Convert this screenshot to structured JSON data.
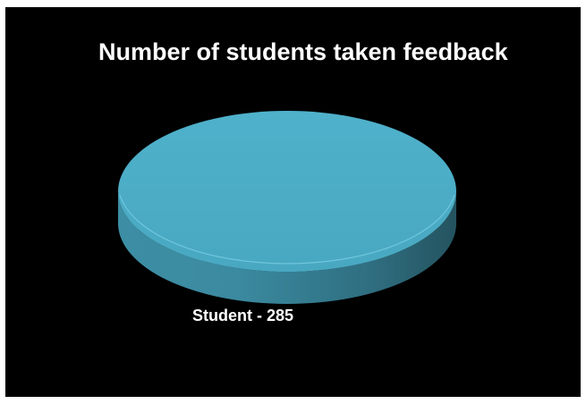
{
  "chart_data": {
    "type": "pie",
    "title": "Number of students taken feedback",
    "slices": [
      {
        "label": "Student",
        "value": 285,
        "color": "#4BACC6"
      }
    ],
    "data_labels": [
      "Student - 285"
    ],
    "legend": "none",
    "style": "3d"
  },
  "colors": {
    "background": "#000000",
    "slice_top": "#4BACC6",
    "label_text": "#ffffff"
  }
}
